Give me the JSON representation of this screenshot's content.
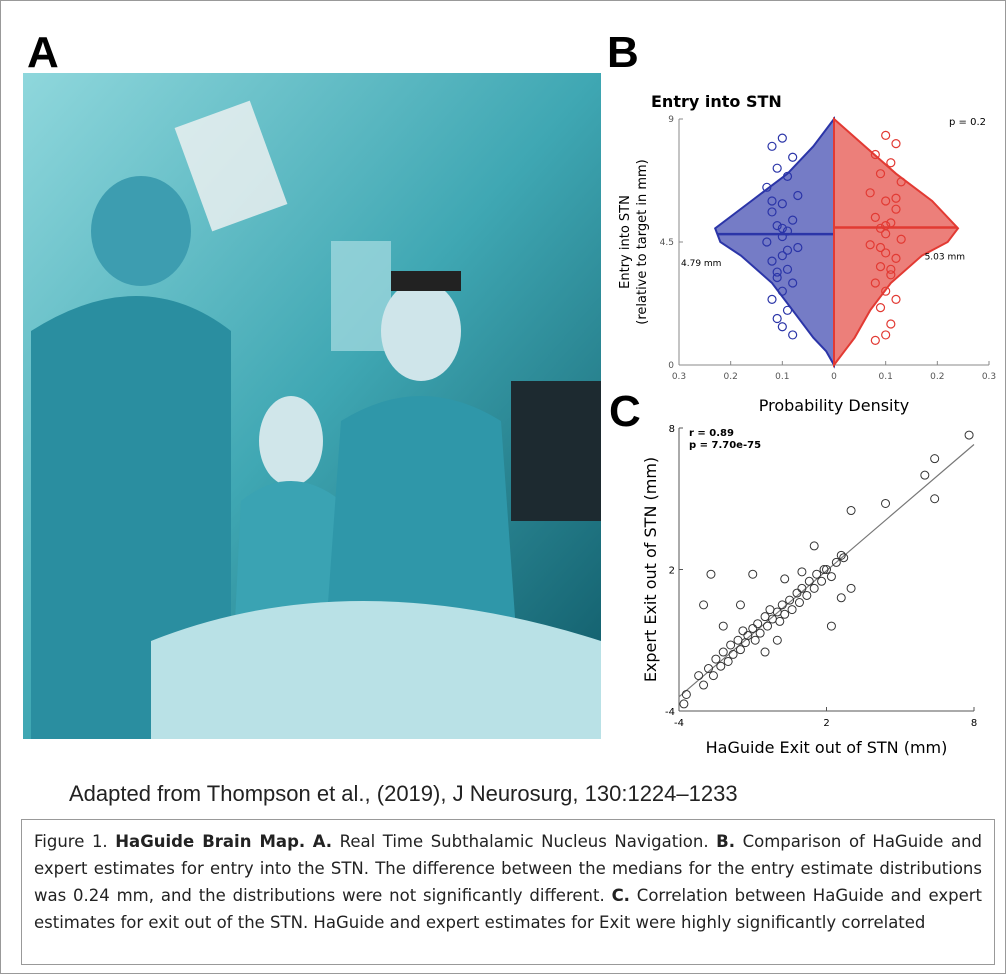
{
  "panel_labels": {
    "a": "A",
    "b": "B",
    "c": "C"
  },
  "panel_b": {
    "chart_data": {
      "type": "violin",
      "title": "Entry into STN",
      "ylabel": [
        "Entry into STN",
        "(relative to target in mm)"
      ],
      "xlabel": "Probability Density",
      "annotation": "p = 0.2",
      "xlim": [
        -0.3,
        0.3
      ],
      "xticks": [
        {
          "value": -0.3,
          "label": "0.3"
        },
        {
          "value": -0.2,
          "label": "0.2"
        },
        {
          "value": -0.1,
          "label": "0.1"
        },
        0,
        0.1,
        0.2,
        0.3
      ],
      "ylim": [
        0,
        9
      ],
      "yticks": [
        0,
        4.5,
        9
      ],
      "series": [
        {
          "color": "#2b35a8",
          "side": "left",
          "median": 4.79,
          "median_label": "4.79 mm",
          "levels": [
            9,
            8,
            7,
            6,
            5,
            4.5,
            4,
            3,
            2,
            1,
            0.5,
            0
          ],
          "density": [
            0,
            0.04,
            0.09,
            0.16,
            0.23,
            0.22,
            0.18,
            0.12,
            0.08,
            0.04,
            0.015,
            0
          ],
          "points_x": [
            -0.1,
            -0.12,
            -0.08,
            -0.11,
            -0.09,
            -0.13,
            -0.07,
            -0.1,
            -0.12,
            -0.08,
            -0.11,
            -0.09,
            -0.1,
            -0.13,
            -0.07,
            -0.1,
            -0.12,
            -0.09,
            -0.11,
            -0.08,
            -0.1,
            -0.12,
            -0.09,
            -0.11,
            -0.1,
            -0.08,
            -0.12,
            -0.1,
            -0.09,
            -0.11
          ],
          "points_y": [
            8.3,
            8.0,
            7.6,
            7.2,
            6.9,
            6.5,
            6.2,
            5.9,
            5.6,
            5.3,
            5.1,
            4.9,
            4.7,
            4.5,
            4.3,
            4.0,
            3.8,
            3.5,
            3.2,
            3.0,
            2.7,
            2.4,
            2.0,
            1.7,
            1.4,
            1.1,
            6.0,
            5.0,
            4.2,
            3.4
          ]
        },
        {
          "color": "#e23a33",
          "side": "right",
          "median": 5.03,
          "median_label": "5.03 mm",
          "levels": [
            9,
            8,
            7,
            6,
            5,
            4.5,
            4,
            3,
            2,
            1,
            0.5,
            0
          ],
          "density": [
            0,
            0.06,
            0.12,
            0.19,
            0.24,
            0.22,
            0.17,
            0.11,
            0.07,
            0.04,
            0.02,
            0
          ],
          "points_x": [
            0.1,
            0.12,
            0.08,
            0.11,
            0.09,
            0.13,
            0.07,
            0.1,
            0.12,
            0.08,
            0.11,
            0.09,
            0.1,
            0.13,
            0.07,
            0.1,
            0.12,
            0.09,
            0.11,
            0.08,
            0.1,
            0.12,
            0.09,
            0.11,
            0.1,
            0.08,
            0.12,
            0.1,
            0.09,
            0.11
          ],
          "points_y": [
            8.4,
            8.1,
            7.7,
            7.4,
            7.0,
            6.7,
            6.3,
            6.0,
            5.7,
            5.4,
            5.2,
            5.0,
            4.8,
            4.6,
            4.4,
            4.1,
            3.9,
            3.6,
            3.3,
            3.0,
            2.7,
            2.4,
            2.1,
            1.5,
            1.1,
            0.9,
            6.1,
            5.1,
            4.3,
            3.5
          ]
        }
      ]
    }
  },
  "panel_c": {
    "chart_data": {
      "type": "scatter",
      "xlabel": "HaGuide Exit out of STN (mm)",
      "ylabel": "Expert Exit out of STN (mm)",
      "annotations": [
        "r = 0.89",
        "p = 7.70e-75"
      ],
      "xlim": [
        -4,
        8
      ],
      "xticks": [
        -4,
        2,
        8
      ],
      "ylim": [
        -4,
        8
      ],
      "yticks": [
        -4,
        2,
        8
      ],
      "color": "#333333",
      "fit": {
        "x": [
          -4,
          8
        ],
        "y": [
          -3.4,
          7.3
        ]
      },
      "series": [
        {
          "x": [
            -3.8,
            -3.2,
            -3,
            -2.8,
            -2.6,
            -2.5,
            -2.3,
            -2.2,
            -2,
            -1.9,
            -1.8,
            -1.6,
            -1.5,
            -1.4,
            -1.3,
            -1.2,
            -1,
            -0.9,
            -0.8,
            -0.7,
            -0.5,
            -0.4,
            -0.3,
            -0.2,
            0,
            0.1,
            0.2,
            0.3,
            0.5,
            0.6,
            0.8,
            0.9,
            1,
            1.2,
            1.3,
            1.5,
            1.6,
            1.8,
            1.9,
            2,
            2.2,
            2.4,
            2.7,
            3,
            2.2,
            2.6,
            -2.7,
            -3,
            -1,
            0.3,
            1,
            -2.2,
            -1.5,
            0,
            -0.5,
            3,
            4.4,
            6,
            6.4,
            6.4,
            7.8,
            2.6,
            1.5,
            -3.7
          ],
          "y": [
            -3.7,
            -2.5,
            -2.9,
            -2.2,
            -2.5,
            -1.8,
            -2.1,
            -1.5,
            -1.9,
            -1.2,
            -1.6,
            -1,
            -1.4,
            -0.6,
            -1.1,
            -0.8,
            -0.5,
            -1,
            -0.3,
            -0.7,
            0,
            -0.4,
            0.3,
            -0.1,
            0.2,
            -0.2,
            0.5,
            0.1,
            0.7,
            0.3,
            1,
            0.6,
            1.2,
            0.9,
            1.5,
            1.2,
            1.8,
            1.5,
            2,
            2,
            1.7,
            2.3,
            2.5,
            1.2,
            -0.4,
            0.8,
            1.8,
            0.5,
            1.8,
            1.6,
            1.9,
            -0.4,
            0.5,
            -1,
            -1.5,
            4.5,
            4.8,
            6,
            6.7,
            5,
            7.7,
            2.6,
            3,
            -3.3
          ]
        }
      ]
    }
  },
  "credit": "Adapted from Thompson et al., (2019), J Neurosurg, 130:1224–1233",
  "caption": {
    "figure": "Figure 1.",
    "title": "HaGuide Brain Map.",
    "a_label": "A.",
    "a_text": "Real Time Subthalamic Nucleus Navigation.",
    "b_label": "B.",
    "b_text": "Comparison of HaGuide and expert estimates for entry into the STN. The difference between the medians for the entry estimate distributions was 0.24 mm, and the distributions were not significantly different.",
    "c_label": "C.",
    "c_text": "Correlation between HaGuide and expert estimates for exit out of the STN. HaGuide and expert estimates for Exit were highly significantly correlated"
  }
}
